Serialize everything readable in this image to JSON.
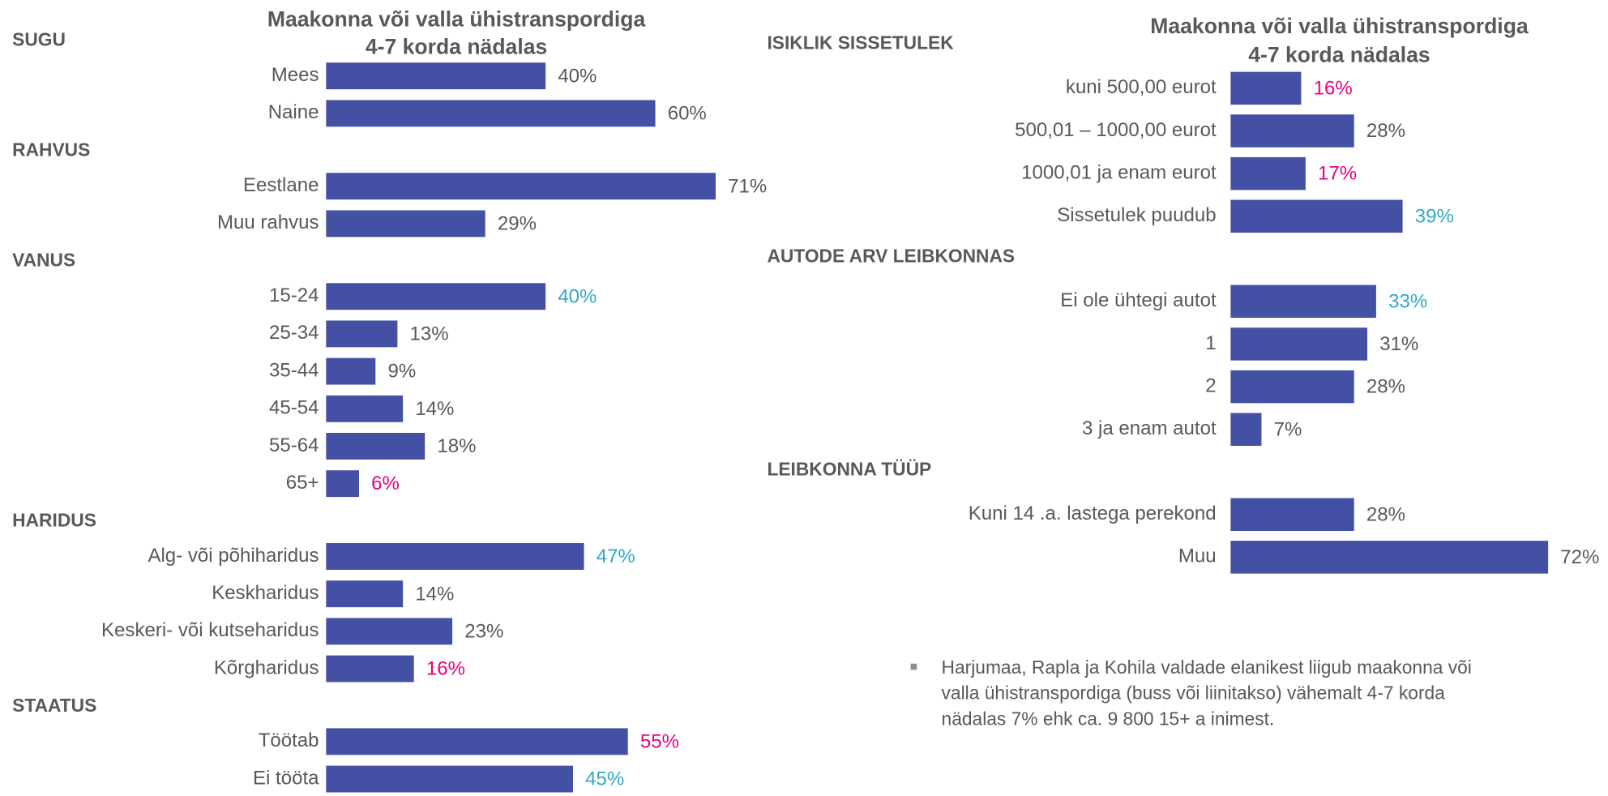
{
  "chart_data": [
    {
      "type": "bar",
      "orientation": "horizontal",
      "color": "#4350a3",
      "title": [
        "Maakonna või valla ühistranspordiga",
        "4-7 korda nädalas"
      ],
      "groups": [
        {
          "name": "SUGU",
          "categories": [
            "Mees",
            "Naine"
          ],
          "values": [
            40,
            60
          ],
          "value_labels": [
            "40%",
            "60%"
          ],
          "value_label_colors": [
            "#595959",
            "#595959"
          ]
        },
        {
          "name": "RAHVUS",
          "categories": [
            "Eestlane",
            "Muu rahvus"
          ],
          "values": [
            71,
            29
          ],
          "value_labels": [
            "71%",
            "29%"
          ],
          "value_label_colors": [
            "#595959",
            "#595959"
          ]
        },
        {
          "name": "VANUS",
          "categories": [
            "15-24",
            "25-34",
            "35-44",
            "45-54",
            "55-64",
            "65+"
          ],
          "values": [
            40,
            13,
            9,
            14,
            18,
            6
          ],
          "value_labels": [
            "40%",
            "13%",
            "9%",
            "14%",
            "18%",
            "6%"
          ],
          "value_label_colors": [
            "#31a9c6",
            "#595959",
            "#595959",
            "#595959",
            "#595959",
            "#e6007e"
          ]
        },
        {
          "name": "HARIDUS",
          "categories": [
            "Alg- või põhiharidus",
            "Keskharidus",
            "Keskeri- või kutseharidus",
            "Kõrgharidus"
          ],
          "values": [
            47,
            14,
            23,
            16
          ],
          "value_labels": [
            "47%",
            "14%",
            "23%",
            "16%"
          ],
          "value_label_colors": [
            "#31a9c6",
            "#595959",
            "#595959",
            "#e6007e"
          ]
        },
        {
          "name": "STAATUS",
          "categories": [
            "Töötab",
            "Ei tööta"
          ],
          "values": [
            55,
            45
          ],
          "value_labels": [
            "55%",
            "45%"
          ],
          "value_label_colors": [
            "#e6007e",
            "#31a9c6"
          ]
        }
      ]
    },
    {
      "type": "bar",
      "orientation": "horizontal",
      "color": "#4350a3",
      "title": [
        "Maakonna või valla ühistranspordiga",
        "4-7 korda nädalas"
      ],
      "groups": [
        {
          "name": "ISIKLIK SISSETULEK",
          "categories": [
            "kuni 500,00 eurot",
            "500,01 – 1000,00 eurot",
            "1000,01 ja enam eurot",
            "Sissetulek puudub"
          ],
          "values": [
            16,
            28,
            17,
            39
          ],
          "value_labels": [
            "16%",
            "28%",
            "17%",
            "39%"
          ],
          "value_label_colors": [
            "#e6007e",
            "#595959",
            "#e6007e",
            "#31a9c6"
          ]
        },
        {
          "name": "AUTODE ARV LEIBKONNAS",
          "categories": [
            "Ei ole ühtegi autot",
            "1",
            "2",
            "3 ja enam autot"
          ],
          "values": [
            33,
            31,
            28,
            7
          ],
          "value_labels": [
            "33%",
            "31%",
            "28%",
            "7%"
          ],
          "value_label_colors": [
            "#31a9c6",
            "#595959",
            "#595959",
            "#595959"
          ]
        },
        {
          "name": "LEIBKONNA TÜÜP",
          "categories": [
            "Kuni 14 .a. lastega perekond",
            "Muu"
          ],
          "values": [
            28,
            72
          ],
          "value_labels": [
            "28%",
            "72%"
          ],
          "value_label_colors": [
            "#595959",
            "#595959"
          ]
        }
      ],
      "annotation": [
        "Harjumaa, Rapla ja Kohila valdade elanikest liigub maakonna või",
        "valla ühistranspordiga (buss või liinitakso) vähemalt 4-7 korda",
        "nädalas 7% ehk ca. 9 800 15+ a inimest."
      ]
    }
  ]
}
